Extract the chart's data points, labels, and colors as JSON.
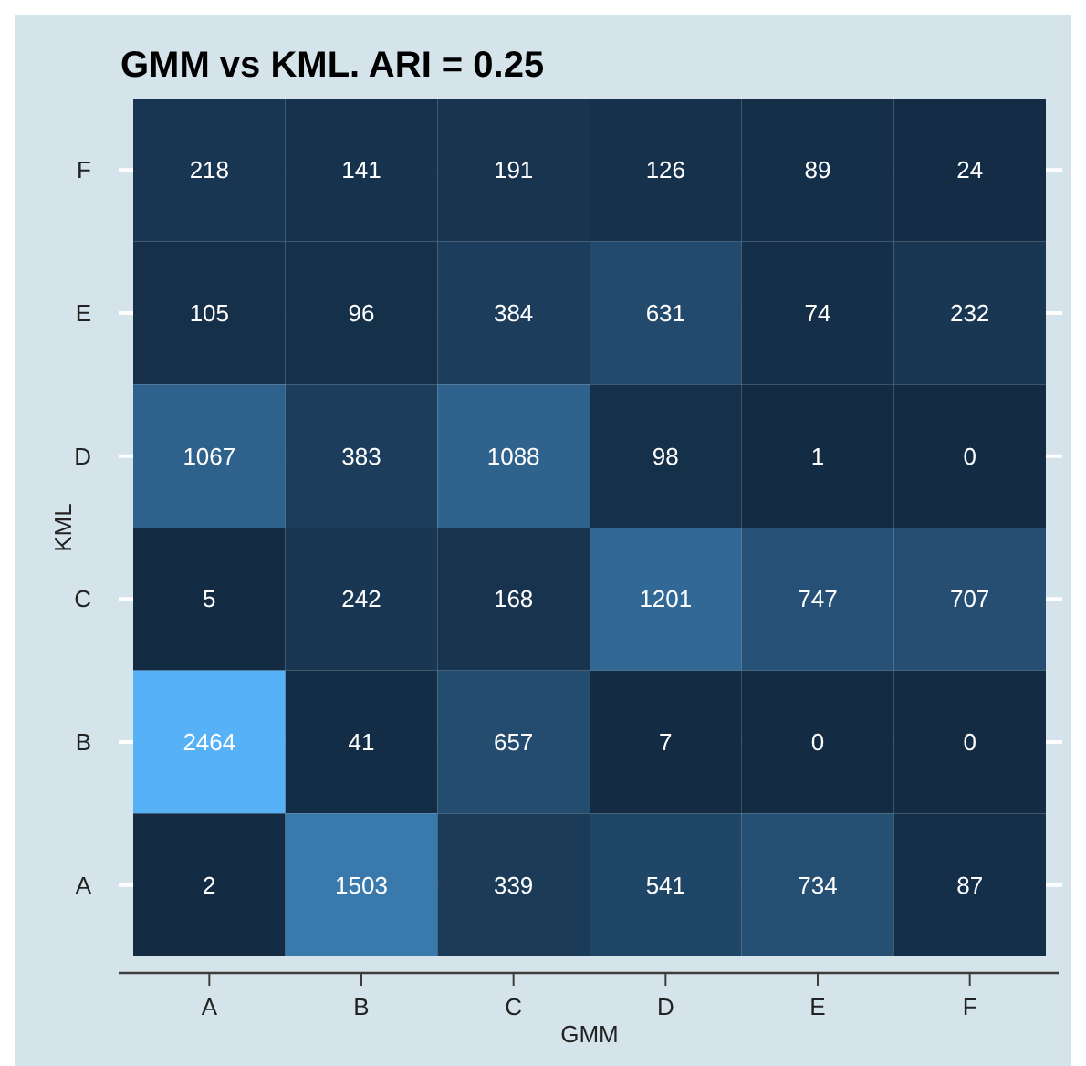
{
  "chart_data": {
    "type": "heatmap",
    "title": "GMM vs KML. ARI = 0.25",
    "xlabel": "GMM",
    "ylabel": "KML",
    "categories": [
      "A",
      "B",
      "C",
      "D",
      "E",
      "F"
    ],
    "y_categories": [
      "F",
      "E",
      "D",
      "C",
      "B",
      "A"
    ],
    "cells": [
      [
        218,
        141,
        191,
        126,
        89,
        24
      ],
      [
        105,
        96,
        384,
        631,
        74,
        232
      ],
      [
        1067,
        383,
        1088,
        98,
        1,
        0
      ],
      [
        5,
        242,
        168,
        1201,
        747,
        707
      ],
      [
        2464,
        41,
        657,
        7,
        0,
        0
      ],
      [
        2,
        1503,
        339,
        541,
        734,
        87
      ]
    ],
    "colors": [
      "#132b43",
      "#56b1f7"
    ],
    "data_labels": true,
    "grid": "y"
  }
}
